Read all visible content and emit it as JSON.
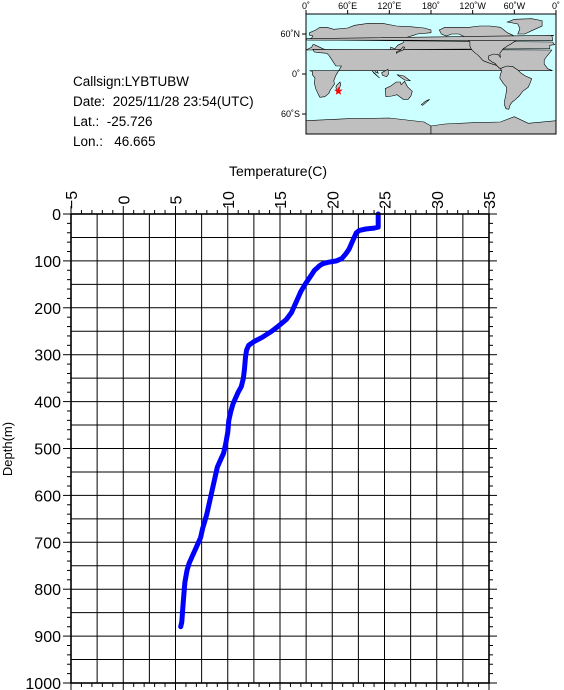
{
  "info": {
    "callsign": "Callsign:LYBTUBW",
    "date": "Date:  2025/11/28 23:54(UTC)",
    "lat": "Lat.:  -25.726",
    "lon": "Lon.:   46.665"
  },
  "map": {
    "lon_labels": [
      "0˚",
      "60˚E",
      "120˚E",
      "180˚",
      "120˚W",
      "60˚W",
      "0˚"
    ],
    "lat_labels": [
      "60˚N",
      "0˚",
      "60˚S"
    ],
    "marker": {
      "lat": -25.726,
      "lon": 46.665,
      "color": "#ff0000"
    },
    "ocean_color": "#ccffff",
    "land_color": "#bfbfbf"
  },
  "chart_data": {
    "type": "line",
    "xlabel": "Temperature(C)",
    "ylabel": "Depth(m)",
    "xlim": [
      -5,
      35
    ],
    "ylim": [
      0,
      1000
    ],
    "x_ticks": [
      "-5",
      "0",
      "5",
      "10",
      "15",
      "20",
      "25",
      "30",
      "35"
    ],
    "y_ticks": [
      "0",
      "100",
      "200",
      "300",
      "400",
      "500",
      "600",
      "700",
      "800",
      "900",
      "1000"
    ],
    "grid": true,
    "series": [
      {
        "color": "#0000ff",
        "points": [
          [
            24.4,
            0
          ],
          [
            24.4,
            10
          ],
          [
            24.4,
            28
          ],
          [
            24.0,
            30
          ],
          [
            23.2,
            32
          ],
          [
            22.6,
            35
          ],
          [
            22.3,
            40
          ],
          [
            22.1,
            50
          ],
          [
            21.9,
            60
          ],
          [
            21.6,
            75
          ],
          [
            21.3,
            85
          ],
          [
            20.9,
            95
          ],
          [
            20.4,
            100
          ],
          [
            19.6,
            103
          ],
          [
            19.1,
            106
          ],
          [
            18.8,
            110
          ],
          [
            18.3,
            120
          ],
          [
            18.0,
            130
          ],
          [
            17.7,
            140
          ],
          [
            17.4,
            150
          ],
          [
            17.0,
            165
          ],
          [
            16.7,
            180
          ],
          [
            16.4,
            195
          ],
          [
            16.1,
            210
          ],
          [
            15.6,
            225
          ],
          [
            14.9,
            238
          ],
          [
            14.2,
            250
          ],
          [
            13.3,
            263
          ],
          [
            12.5,
            272
          ],
          [
            12.0,
            280
          ],
          [
            11.8,
            290
          ],
          [
            11.7,
            305
          ],
          [
            11.6,
            330
          ],
          [
            11.5,
            350
          ],
          [
            11.3,
            368
          ],
          [
            11.0,
            380
          ],
          [
            10.8,
            390
          ],
          [
            10.5,
            405
          ],
          [
            10.3,
            420
          ],
          [
            10.1,
            440
          ],
          [
            10.0,
            465
          ],
          [
            9.8,
            490
          ],
          [
            9.6,
            510
          ],
          [
            9.3,
            525
          ],
          [
            9.0,
            540
          ],
          [
            8.8,
            560
          ],
          [
            8.6,
            580
          ],
          [
            8.4,
            600
          ],
          [
            8.2,
            620
          ],
          [
            8.0,
            640
          ],
          [
            7.8,
            655
          ],
          [
            7.6,
            670
          ],
          [
            7.4,
            690
          ],
          [
            7.0,
            710
          ],
          [
            6.6,
            730
          ],
          [
            6.3,
            745
          ],
          [
            6.1,
            760
          ],
          [
            5.9,
            785
          ],
          [
            5.8,
            810
          ],
          [
            5.7,
            840
          ],
          [
            5.6,
            870
          ],
          [
            5.5,
            880
          ]
        ]
      }
    ]
  }
}
